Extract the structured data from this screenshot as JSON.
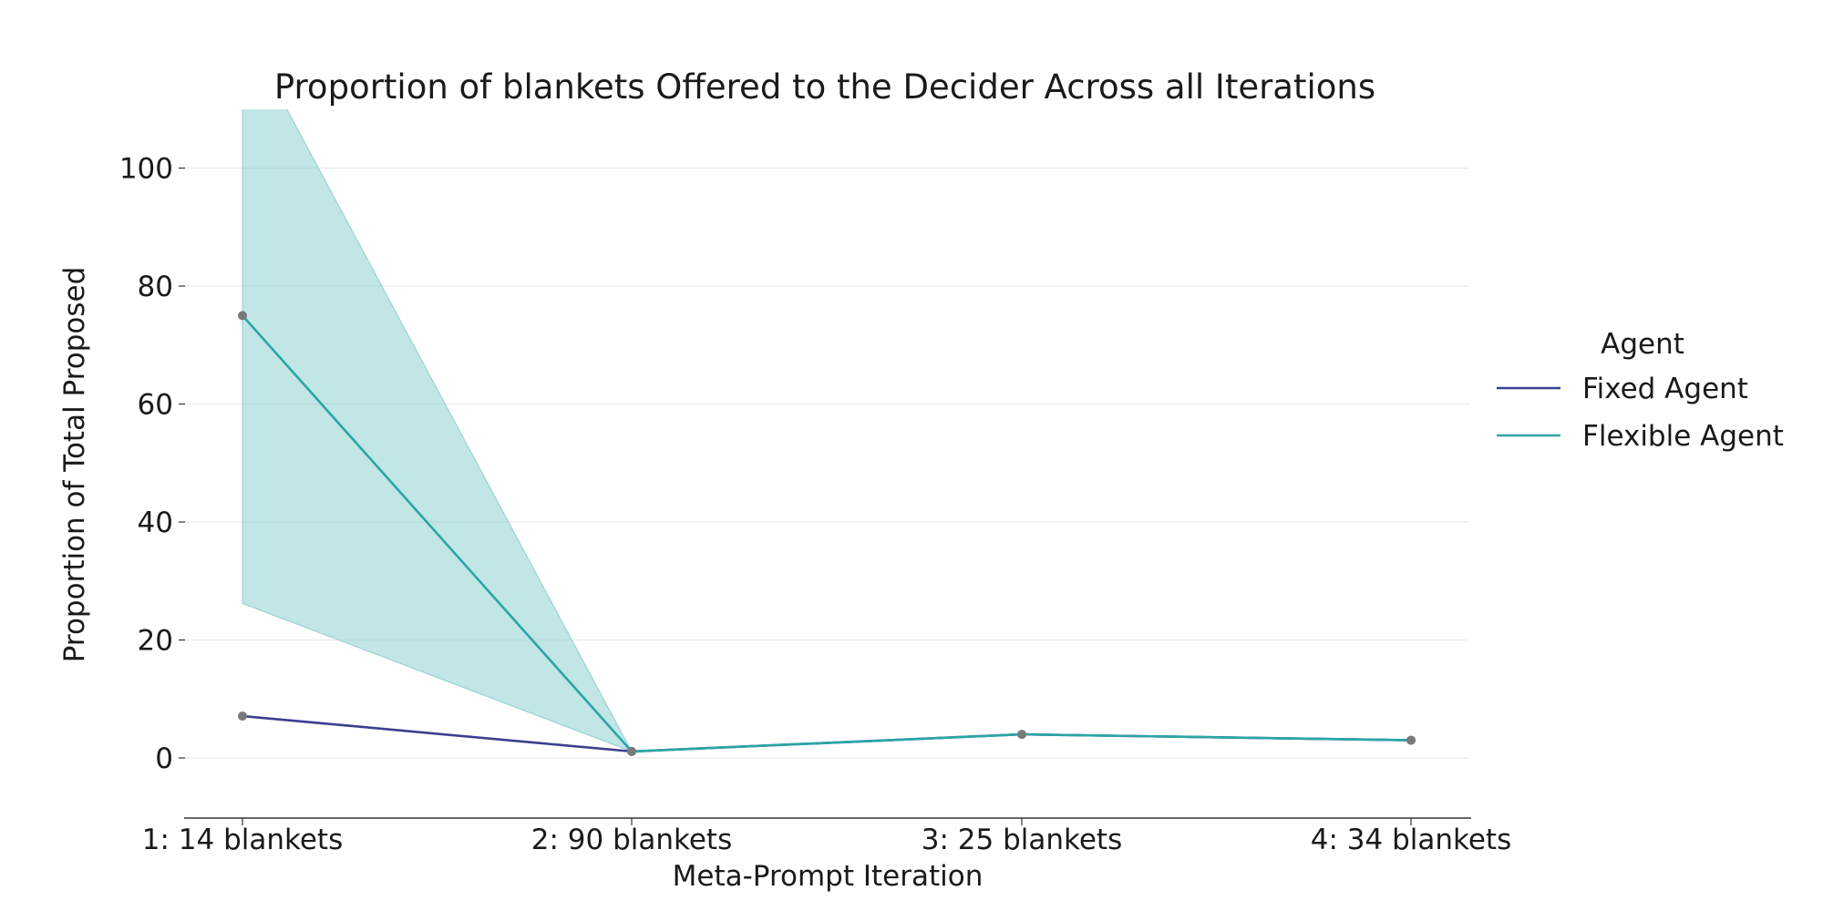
{
  "chart_data": {
    "type": "line",
    "title": "Proportion of blankets Offered to the Decider Across all Iterations",
    "xlabel": "Meta-Prompt Iteration",
    "ylabel": "Proportion of Total Proposed",
    "categories": [
      "1: 14 blankets",
      "2: 90 blankets",
      "3: 25 blankets",
      "4: 34 blankets"
    ],
    "ylim": [
      -10,
      110
    ],
    "yticks": [
      0,
      20,
      40,
      60,
      80,
      100
    ],
    "grid": true,
    "legend": {
      "title": "Agent",
      "placement": "right"
    },
    "series": [
      {
        "name": "Fixed Agent",
        "color": "#3b3f8f",
        "values": [
          7.1,
          1.1,
          4.0,
          3.0
        ]
      },
      {
        "name": "Flexible Agent",
        "color": "#2aa6a6",
        "values": [
          75.0,
          1.1,
          4.0,
          3.0
        ],
        "ci_lower": [
          26.2,
          1.1,
          4.0,
          3.0
        ],
        "ci_upper": [
          124.0,
          1.1,
          4.0,
          3.0
        ]
      }
    ],
    "band_color": "#8fd0d0",
    "point_color": "#7a7a7a"
  }
}
